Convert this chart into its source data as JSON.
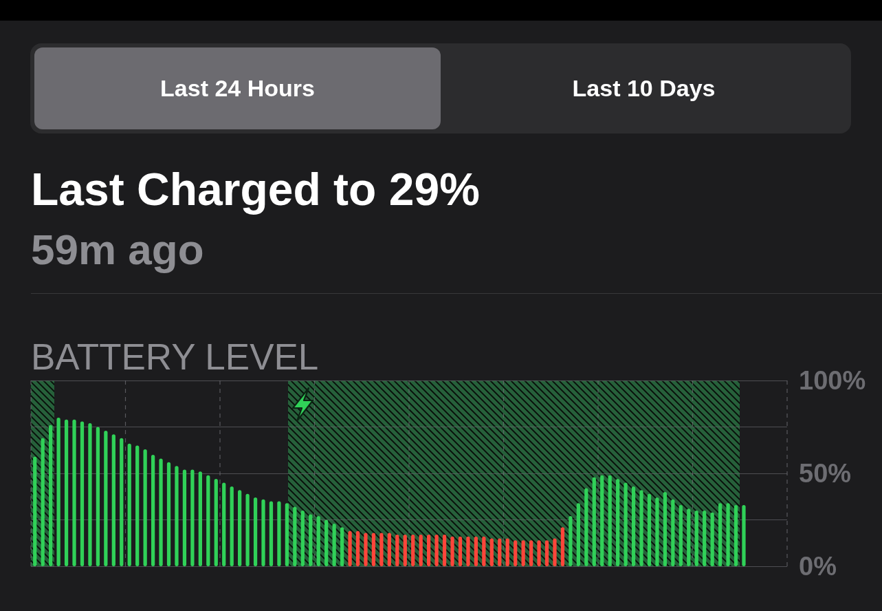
{
  "chart_data": {
    "type": "bar",
    "title": "Last Charged to 29%",
    "subtitle": "59m ago",
    "annotations": [
      "Last 24 Hours",
      "Last 10 Days",
      "BATTERY LEVEL"
    ],
    "categories": [
      null,
      null,
      null,
      null,
      null,
      null,
      null,
      null,
      null,
      null,
      null,
      null,
      null,
      null,
      null,
      null,
      null,
      null,
      null,
      null,
      null,
      null,
      null,
      null,
      null,
      null,
      null,
      null,
      null,
      null,
      null,
      null,
      null,
      null,
      null,
      null,
      null,
      null,
      null,
      null,
      null,
      null,
      null,
      null,
      null,
      null,
      null,
      null,
      null,
      null,
      null,
      null,
      null,
      null,
      null,
      null,
      null,
      null,
      null,
      null,
      null,
      null,
      null,
      null,
      null,
      null,
      null,
      null,
      null,
      null,
      null,
      null,
      null,
      null,
      null,
      null,
      null,
      null,
      null,
      null,
      null,
      null,
      null,
      null,
      null,
      null,
      null,
      null,
      null,
      null,
      null,
      null,
      null,
      null,
      null,
      null
    ],
    "values": [
      59,
      69,
      76,
      80,
      79,
      79,
      78,
      77,
      75,
      73,
      71,
      69,
      66,
      65,
      63,
      60,
      58,
      56,
      54,
      52,
      52,
      51,
      49,
      47,
      45,
      43,
      41,
      39,
      37,
      36,
      35,
      35,
      34,
      32,
      30,
      28,
      27,
      25,
      23,
      21,
      19,
      19,
      18,
      18,
      18,
      18,
      17,
      17,
      17,
      17,
      17,
      17,
      17,
      16,
      16,
      16,
      16,
      16,
      15,
      15,
      15,
      14,
      14,
      14,
      14,
      14,
      15,
      21,
      27,
      34,
      42,
      48,
      49,
      49,
      47,
      45,
      43,
      41,
      39,
      37,
      40,
      36,
      33,
      31,
      30,
      30,
      29,
      34,
      34,
      33,
      33,
      null,
      null,
      null,
      null,
      null
    ],
    "colors": [
      "#30d158",
      "#30d158",
      "#30d158",
      "#30d158",
      "#30d158",
      "#30d158",
      "#30d158",
      "#30d158",
      "#30d158",
      "#30d158",
      "#30d158",
      "#30d158",
      "#30d158",
      "#30d158",
      "#30d158",
      "#30d158",
      "#30d158",
      "#30d158",
      "#30d158",
      "#30d158",
      "#30d158",
      "#30d158",
      "#30d158",
      "#30d158",
      "#30d158",
      "#30d158",
      "#30d158",
      "#30d158",
      "#30d158",
      "#30d158",
      "#30d158",
      "#30d158",
      "#30d158",
      "#30d158",
      "#30d158",
      "#30d158",
      "#30d158",
      "#30d158",
      "#30d158",
      "#30d158",
      "#ff453a",
      "#ff453a",
      "#ff453a",
      "#ff453a",
      "#ff453a",
      "#ff453a",
      "#ff453a",
      "#ff453a",
      "#ff453a",
      "#ff453a",
      "#ff453a",
      "#ff453a",
      "#ff453a",
      "#ff453a",
      "#ff453a",
      "#ff453a",
      "#ff453a",
      "#ff453a",
      "#ff453a",
      "#ff453a",
      "#ff453a",
      "#ff453a",
      "#ff453a",
      "#ff453a",
      "#ff453a",
      "#ff453a",
      "#ff453a",
      "#ff453a",
      "#30d158",
      "#30d158",
      "#30d158",
      "#30d158",
      "#30d158",
      "#30d158",
      "#30d158",
      "#30d158",
      "#30d158",
      "#30d158",
      "#30d158",
      "#30d158",
      "#30d158",
      "#30d158",
      "#30d158",
      "#30d158",
      "#30d158",
      "#30d158",
      "#30d158",
      "#30d158",
      "#30d158",
      "#30d158",
      "#30d158",
      null,
      null,
      null,
      null,
      null
    ],
    "ylim": [
      0,
      100
    ],
    "yticks": [
      {
        "value": 0,
        "label": "0%"
      },
      {
        "value": 25,
        "label": null
      },
      {
        "value": 50,
        "label": "50%"
      },
      {
        "value": 75,
        "label": null
      },
      {
        "value": 100,
        "label": "100%"
      }
    ],
    "grid": true,
    "tick_labels": "y"
  }
}
